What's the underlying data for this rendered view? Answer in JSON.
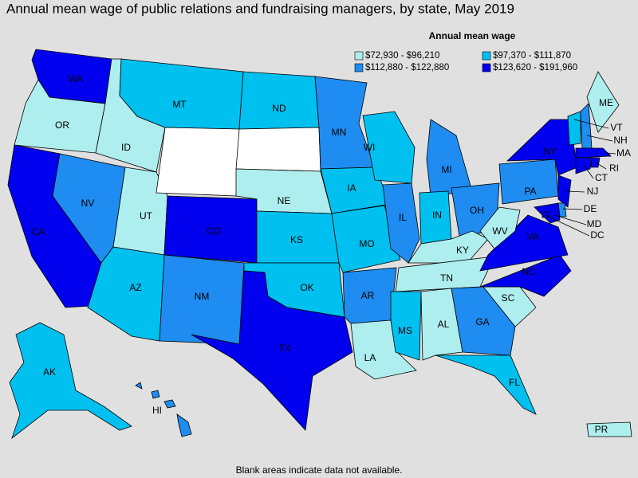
{
  "map": {
    "title": "Annual mean wage of public relations and fundraising managers, by state, May 2019",
    "legend": {
      "title": "Annual mean wage",
      "entries": [
        {
          "label": "$72,930 - $96,210",
          "color": "#aeeeee"
        },
        {
          "label": "$97,370 - $111,870",
          "color": "#00c0f0"
        },
        {
          "label": "$112,880 - $122,880",
          "color": "#1e8cf0"
        },
        {
          "label": "$123,620 - $191,960",
          "color": "#0000ee"
        }
      ]
    },
    "footnote": "Blank areas indicate data not available.",
    "states": [
      {
        "label": "WA",
        "color": "#0000ee"
      },
      {
        "label": "OR",
        "color": "#aeeeee"
      },
      {
        "label": "CA",
        "color": "#0000ee"
      },
      {
        "label": "ID",
        "color": "#aeeeee"
      },
      {
        "label": "NV",
        "color": "#1e8cf0"
      },
      {
        "label": "UT",
        "color": "#aeeeee"
      },
      {
        "label": "AZ",
        "color": "#00c0f0"
      },
      {
        "label": "MT",
        "color": "#00c0f0"
      },
      {
        "label": null,
        "color": "#ffffff"
      },
      {
        "label": "CO",
        "color": "#0000ee"
      },
      {
        "label": "NM",
        "color": "#1e8cf0"
      },
      {
        "label": "ND",
        "color": "#00c0f0"
      },
      {
        "label": null,
        "color": "#ffffff"
      },
      {
        "label": "NE",
        "color": "#aeeeee"
      },
      {
        "label": "KS",
        "color": "#00c0f0"
      },
      {
        "label": "OK",
        "color": "#00c0f0"
      },
      {
        "label": "TX",
        "color": "#0000ee"
      },
      {
        "label": "MN",
        "color": "#1e8cf0"
      },
      {
        "label": "IA",
        "color": "#00c0f0"
      },
      {
        "label": "MO",
        "color": "#00c0f0"
      },
      {
        "label": "AR",
        "color": "#1e8cf0"
      },
      {
        "label": "LA",
        "color": "#aeeeee"
      },
      {
        "label": "WI",
        "color": "#00c0f0"
      },
      {
        "label": "IL",
        "color": "#1e8cf0"
      },
      {
        "label": "MI",
        "color": "#1e8cf0"
      },
      {
        "label": "IN",
        "color": "#00c0f0"
      },
      {
        "label": "OH",
        "color": "#1e8cf0"
      },
      {
        "label": "KY",
        "color": "#aeeeee"
      },
      {
        "label": "TN",
        "color": "#aeeeee"
      },
      {
        "label": "MS",
        "color": "#00c0f0"
      },
      {
        "label": "AL",
        "color": "#aeeeee"
      },
      {
        "label": "GA",
        "color": "#1e8cf0"
      },
      {
        "label": "FL",
        "color": "#00c0f0"
      },
      {
        "label": "SC",
        "color": "#aeeeee"
      },
      {
        "label": "NC",
        "color": "#0000ee"
      },
      {
        "label": "VA",
        "color": "#0000ee"
      },
      {
        "label": "WV",
        "color": "#aeeeee"
      },
      {
        "label": "PA",
        "color": "#1e8cf0"
      },
      {
        "label": "NY",
        "color": "#0000ee"
      },
      {
        "label": "ME",
        "color": "#aeeeee"
      },
      {
        "label": "VT",
        "color": "#00c0f0"
      },
      {
        "label": "NH",
        "color": "#1e8cf0"
      },
      {
        "label": "MA",
        "color": "#0000ee"
      },
      {
        "label": "CT",
        "color": "#0000ee"
      },
      {
        "label": "RI",
        "color": "#0000ee"
      },
      {
        "label": "NJ",
        "color": "#0000ee"
      },
      {
        "label": "DE",
        "color": "#1e8cf0"
      },
      {
        "label": "MD",
        "color": "#0000ee"
      },
      {
        "label": "DC",
        "color": "#0000ee"
      },
      {
        "label": "AK",
        "color": "#00c0f0"
      },
      {
        "label": "HI",
        "color": "#1e8cf0"
      },
      {
        "label": "PR",
        "color": "#aeeeee"
      }
    ]
  }
}
